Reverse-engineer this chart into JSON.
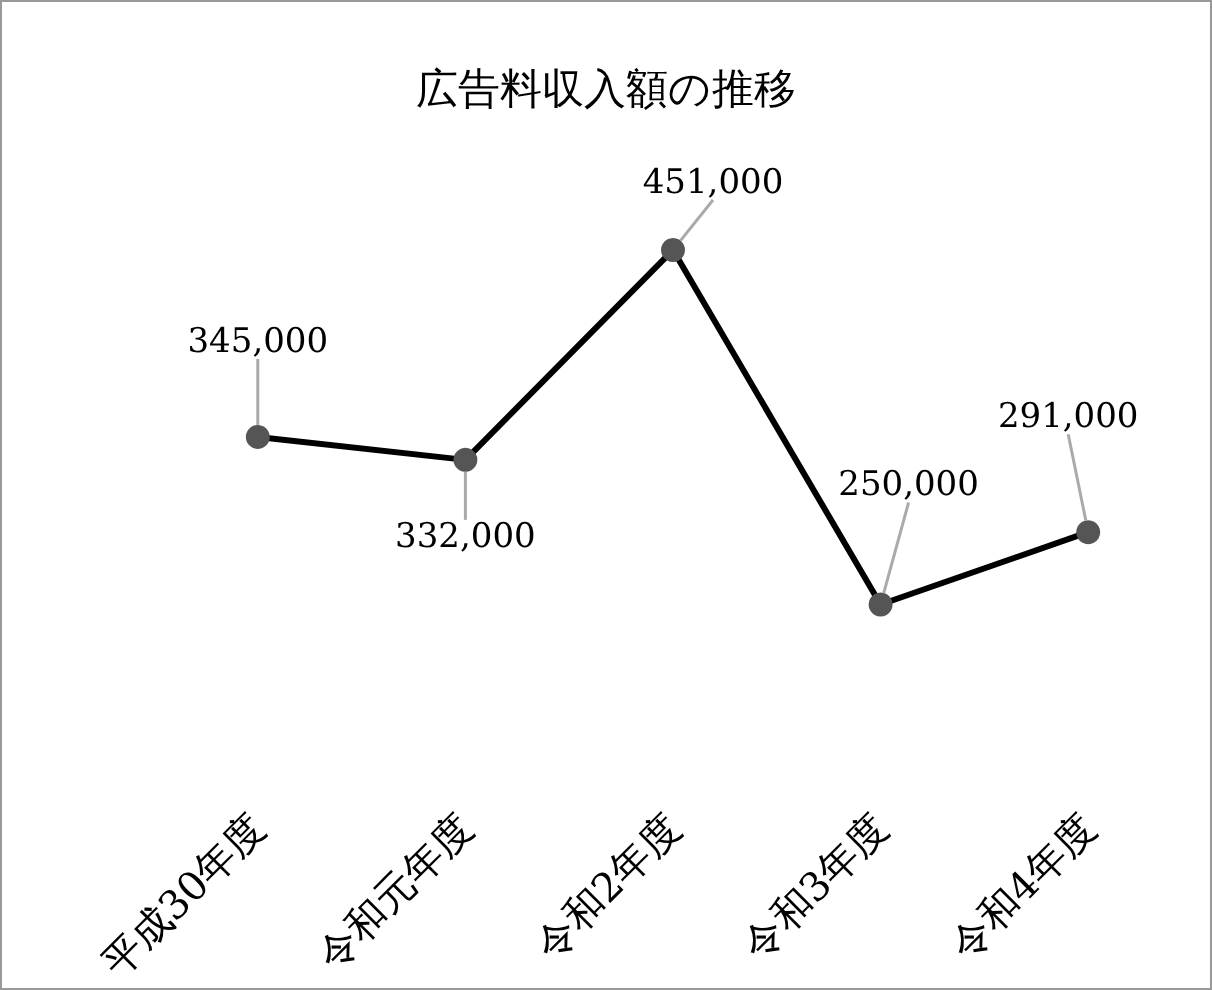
{
  "chart_data": {
    "type": "line",
    "title": "広告料収入額の推移",
    "categories": [
      "平成30年度",
      "令和元年度",
      "令和2年度",
      "令和3年度",
      "令和4年度"
    ],
    "series": [
      {
        "color": "#000000",
        "values": [
          345000,
          332000,
          451000,
          250000,
          291000
        ],
        "value_labels": [
          "345,000",
          "332,000",
          "451,000",
          "250,000",
          "291,000"
        ]
      }
    ],
    "marker": "circle",
    "line_style": "solid",
    "grid": false,
    "tick_labels": "x"
  }
}
